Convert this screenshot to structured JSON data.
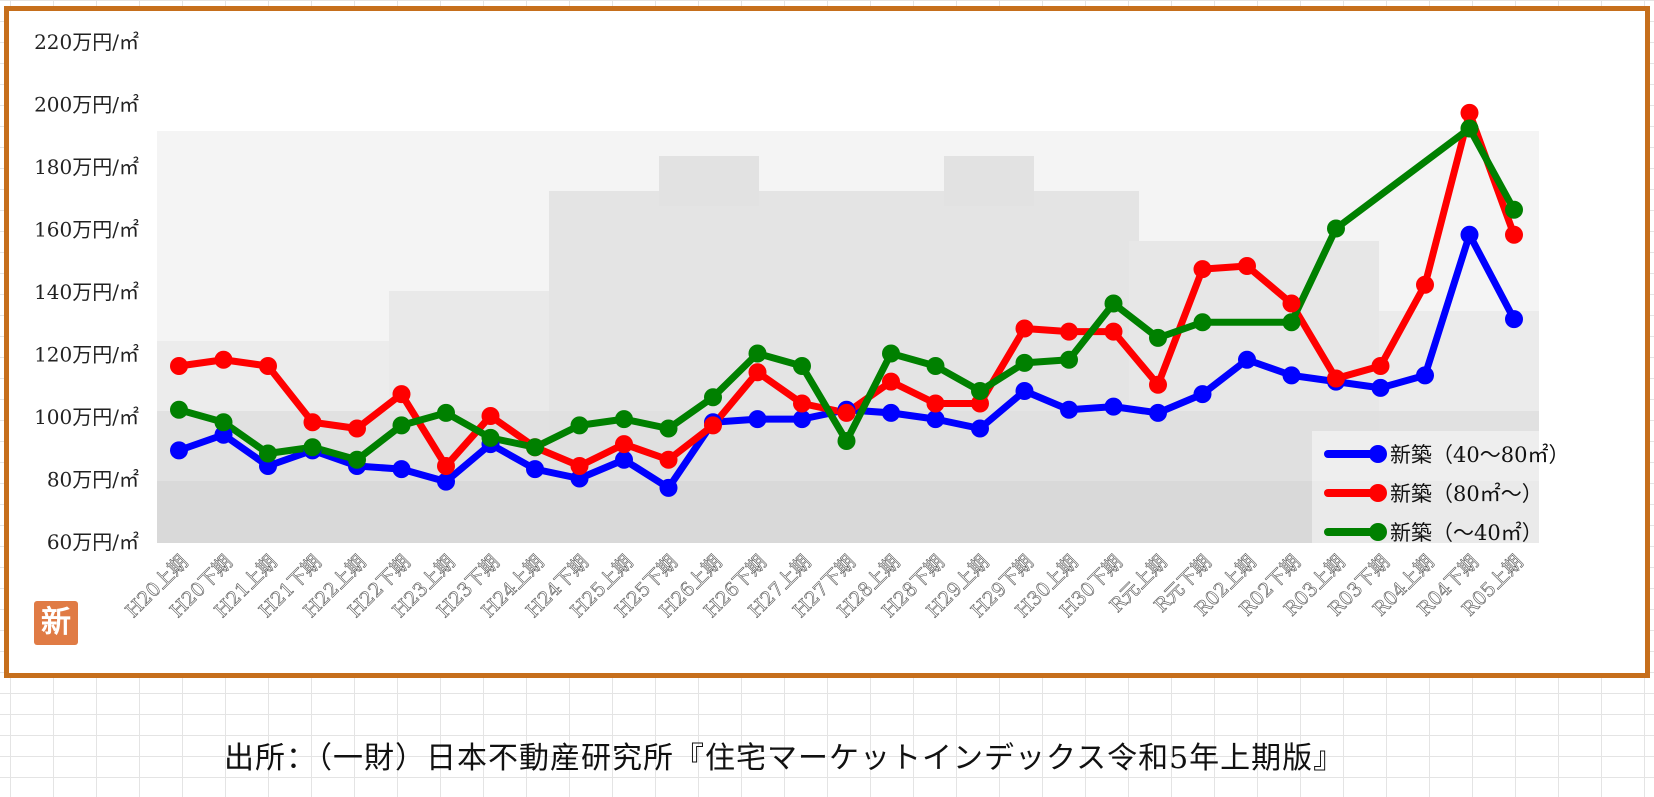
{
  "source_note": "出所：（一財）日本不動産研究所『住宅マーケットインデックス令和5年上期版』",
  "stamp_label": "新",
  "chart_data": {
    "type": "line",
    "title": "",
    "xlabel": "",
    "ylabel": "",
    "ylim": [
      60,
      220
    ],
    "y_ticks": [
      60,
      80,
      100,
      120,
      140,
      160,
      180,
      200,
      220
    ],
    "y_tick_labels": [
      "60万円/㎡",
      "80万円/㎡",
      "100万円/㎡",
      "120万円/㎡",
      "140万円/㎡",
      "160万円/㎡",
      "180万円/㎡",
      "200万円/㎡",
      "220万円/㎡"
    ],
    "grid": false,
    "legend_position": "bottom-right",
    "categories": [
      "H20上期",
      "H20下期",
      "H21上期",
      "H21下期",
      "H22上期",
      "H22下期",
      "H23上期",
      "H23下期",
      "H24上期",
      "H24下期",
      "H25上期",
      "H25下期",
      "H26上期",
      "H26下期",
      "H27上期",
      "H27下期",
      "H28上期",
      "H28下期",
      "H29上期",
      "H29下期",
      "H30上期",
      "H30下期",
      "R元上期",
      "R元下期",
      "R02上期",
      "R02下期",
      "R03上期",
      "R03下期",
      "R04上期",
      "R04下期",
      "R05上期"
    ],
    "series": [
      {
        "name": "新築（40～80㎡）",
        "color": "#0000ff",
        "values": [
          89,
          94,
          84,
          89,
          84,
          83,
          79,
          91,
          83,
          80,
          86,
          77,
          98,
          99,
          99,
          102,
          101,
          99,
          96,
          108,
          102,
          103,
          101,
          107,
          118,
          113,
          111,
          109,
          113,
          158,
          131
        ]
      },
      {
        "name": "新築（80㎡～）",
        "color": "#ff0000",
        "values": [
          116,
          118,
          116,
          98,
          96,
          107,
          84,
          100,
          90,
          84,
          91,
          86,
          97,
          114,
          104,
          101,
          111,
          104,
          104,
          128,
          127,
          127,
          110,
          147,
          148,
          136,
          112,
          116,
          142,
          197,
          158
        ]
      },
      {
        "name": "新築（～40㎡）",
        "color": "#008000",
        "values": [
          102,
          98,
          88,
          90,
          86,
          97,
          101,
          93,
          90,
          97,
          99,
          96,
          106,
          120,
          116,
          92,
          120,
          116,
          108,
          117,
          118,
          136,
          125,
          130,
          null,
          130,
          160,
          null,
          null,
          192,
          166
        ]
      }
    ]
  }
}
